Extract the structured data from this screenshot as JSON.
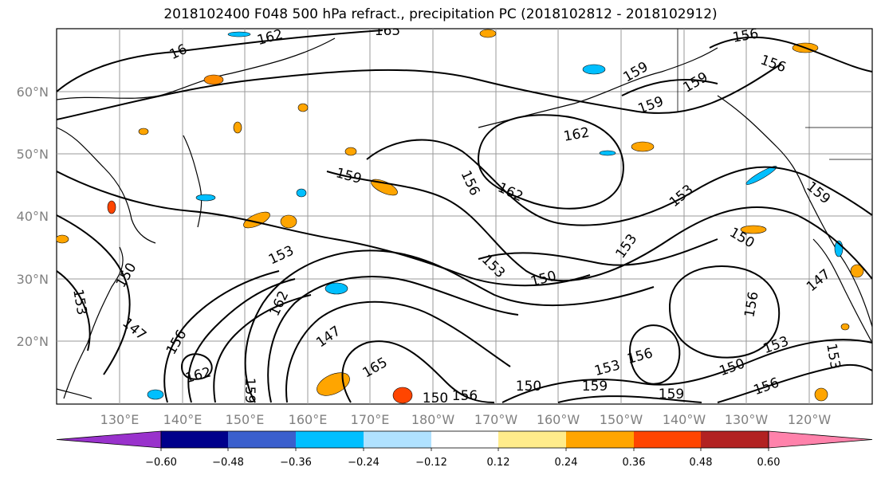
{
  "title": "2018102400 F048 500 hPa refract., precipitation PC (2018102812 - 2018102912)",
  "lat_labels": [
    "60°N",
    "50°N",
    "40°N",
    "30°N",
    "20°N"
  ],
  "lon_labels": [
    "130°E",
    "140°E",
    "150°E",
    "160°E",
    "170°E",
    "180°W",
    "170°W",
    "160°W",
    "150°W",
    "140°W",
    "130°W",
    "120°W"
  ],
  "colorbar": {
    "ticks": [
      "−0.60",
      "−0.48",
      "−0.36",
      "−0.24",
      "−0.12",
      "0.12",
      "0.24",
      "0.36",
      "0.48",
      "0.60"
    ],
    "colors": [
      "#9932cc",
      "#00008b",
      "#3a5fcd",
      "#00bfff",
      "#b0e2ff",
      "#ffffff",
      "#ffec8b",
      "#ffa500",
      "#ff4500",
      "#b22222",
      "#ff82ab"
    ]
  },
  "contour_labels": [
    "162",
    "165",
    "16",
    "156",
    "156",
    "159",
    "159",
    "159",
    "162",
    "156",
    "162",
    "159",
    "153",
    "159",
    "153",
    "150",
    "153",
    "150",
    "153",
    "147",
    "147",
    "150",
    "153",
    "147",
    "162",
    "156",
    "162",
    "159",
    "165",
    "150",
    "156",
    "150",
    "153",
    "159",
    "156",
    "159",
    "150",
    "153",
    "156",
    "153",
    "156"
  ]
}
